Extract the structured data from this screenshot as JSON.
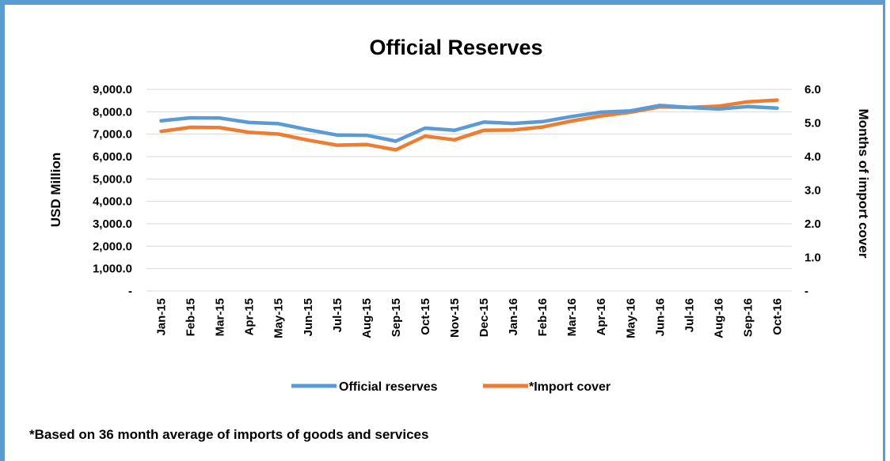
{
  "chart_data": {
    "type": "line",
    "title": "Official Reserves",
    "ylabel": "USD Million",
    "y2label": "Months of import cover",
    "ylim": [
      0,
      9000
    ],
    "y2lim": [
      0,
      6
    ],
    "yticks": [
      "-",
      "1,000.0",
      "2,000.0",
      "3,000.0",
      "4,000.0",
      "5,000.0",
      "6,000.0",
      "7,000.0",
      "8,000.0",
      "9,000.0"
    ],
    "y2ticks": [
      "-",
      "1.0",
      "2.0",
      "3.0",
      "4.0",
      "5.0",
      "6.0"
    ],
    "grid": true,
    "legend_position": "bottom",
    "categories": [
      "Jan-15",
      "Feb-15",
      "Mar-15",
      "Apr-15",
      "May-15",
      "Jun-15",
      "Jul-15",
      "Aug-15",
      "Sep-15",
      "Oct-15",
      "Nov-15",
      "Dec-15",
      "Jan-16",
      "Feb-16",
      "Mar-16",
      "Apr-16",
      "May-16",
      "Jun-16",
      "Jul-16",
      "Aug-16",
      "Sep-16",
      "Oct-16"
    ],
    "series": [
      {
        "name": "Official reserves",
        "axis": "left",
        "color": "#5b9bd5",
        "values": [
          7600,
          7730,
          7720,
          7520,
          7470,
          7200,
          6960,
          6950,
          6690,
          7270,
          7170,
          7540,
          7480,
          7560,
          7790,
          7980,
          8040,
          8280,
          8190,
          8120,
          8230,
          8160
        ]
      },
      {
        "name": "*Import cover",
        "axis": "right",
        "color": "#ed7d31",
        "values": [
          4.75,
          4.87,
          4.86,
          4.72,
          4.67,
          4.49,
          4.34,
          4.36,
          4.2,
          4.61,
          4.5,
          4.78,
          4.79,
          4.88,
          5.06,
          5.21,
          5.32,
          5.48,
          5.46,
          5.5,
          5.63,
          5.68
        ]
      }
    ]
  },
  "footnote": "*Based on 36 month average of imports of goods and services"
}
